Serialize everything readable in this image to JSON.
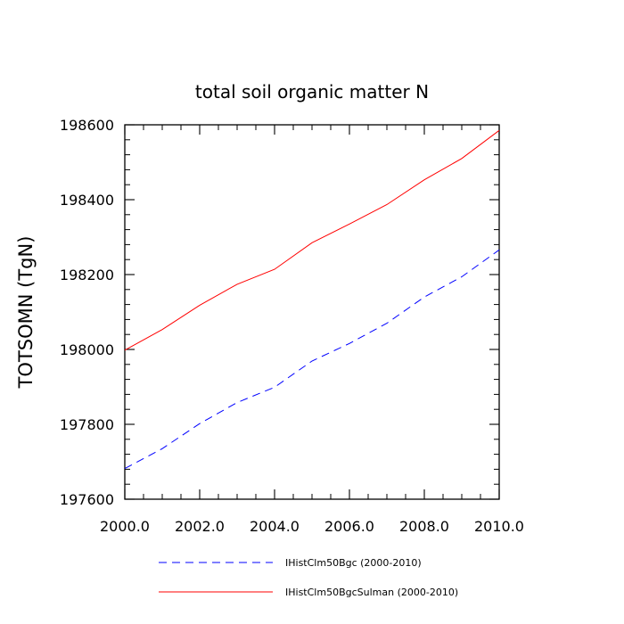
{
  "chart_data": {
    "type": "line",
    "title": "total soil organic matter N",
    "xlabel": "",
    "ylabel": "TOTSOMN  (TgN)",
    "xlim": [
      2000,
      2010
    ],
    "ylim": [
      197600,
      198600
    ],
    "xticks": [
      2000,
      2002,
      2004,
      2006,
      2008,
      2010
    ],
    "xtick_labels": [
      "2000.0",
      "2002.0",
      "2004.0",
      "2006.0",
      "2008.0",
      "2010.0"
    ],
    "yticks": [
      197600,
      197800,
      198000,
      198200,
      198400,
      198600
    ],
    "ytick_labels": [
      "197600",
      "197800",
      "198000",
      "198200",
      "198400",
      "198600"
    ],
    "grid": false,
    "legend_position": "bottom",
    "x": [
      2000,
      2001,
      2002,
      2003,
      2004,
      2005,
      2006,
      2007,
      2008,
      2009,
      2010
    ],
    "series": [
      {
        "name": "IHistClm50Bgc (2000-2010)",
        "color": "#0000ff",
        "style": "dashed",
        "values": [
          197682,
          197735,
          197802,
          197858,
          197899,
          197969,
          198016,
          198070,
          198140,
          198194,
          198266
        ]
      },
      {
        "name": "IHistClm50BgcSulman (2000-2010)",
        "color": "#ff0000",
        "style": "solid",
        "values": [
          197998,
          198053,
          198118,
          198174,
          198214,
          198285,
          198335,
          198387,
          198453,
          198510,
          198585
        ]
      }
    ]
  }
}
